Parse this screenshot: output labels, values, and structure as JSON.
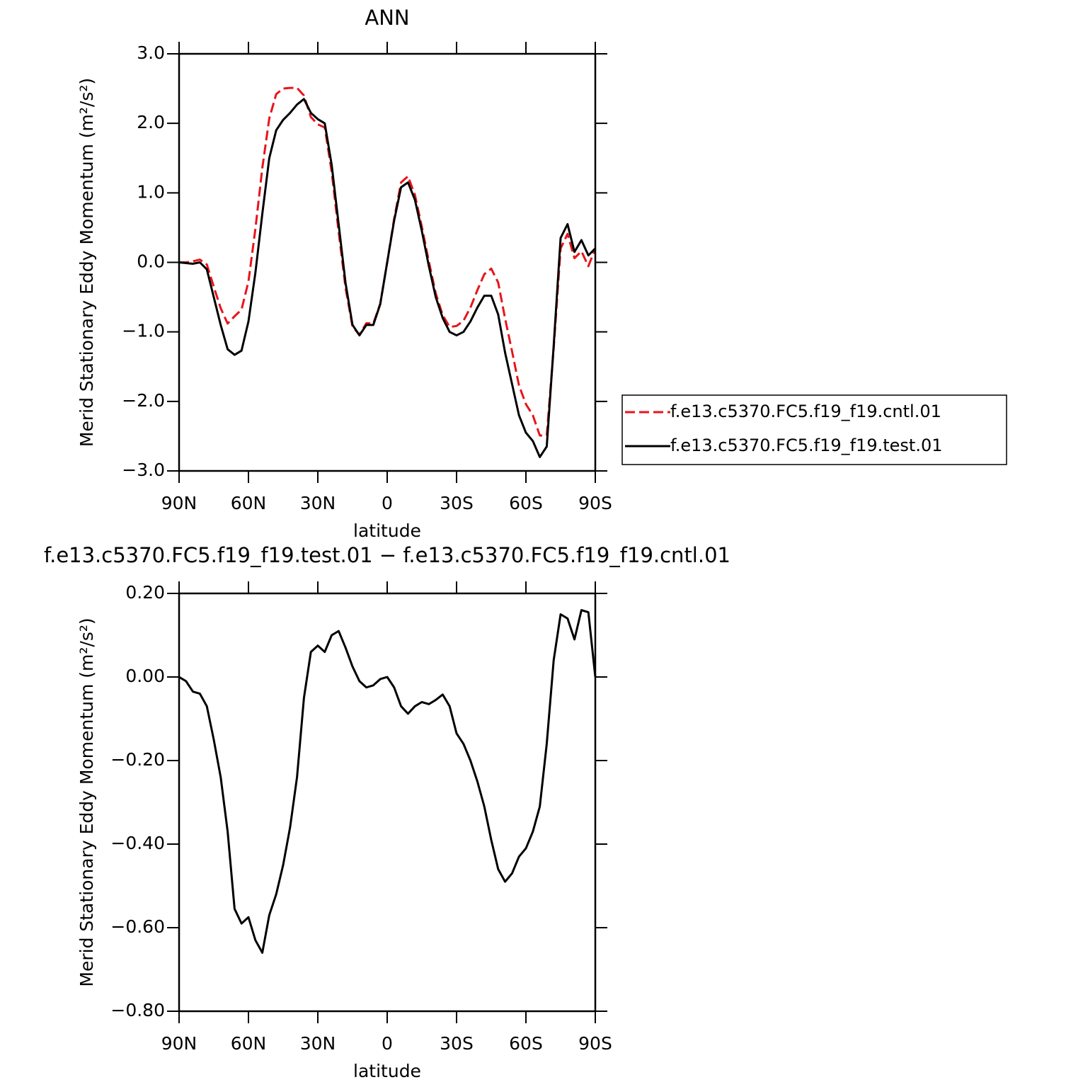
{
  "chart_data": [
    {
      "type": "line",
      "title": "ANN",
      "xlabel": "latitude",
      "ylabel": "Merid Stationary Eddy Momentum (m²/s²)",
      "x": [
        90,
        87,
        84,
        81,
        78,
        75,
        72,
        69,
        66,
        63,
        60,
        57,
        54,
        51,
        48,
        45,
        42,
        39,
        36,
        33,
        30,
        27,
        24,
        21,
        18,
        15,
        12,
        9,
        6,
        3,
        0,
        -3,
        -6,
        -9,
        -12,
        -15,
        -18,
        -21,
        -24,
        -27,
        -30,
        -33,
        -36,
        -39,
        -42,
        -45,
        -48,
        -51,
        -54,
        -57,
        -60,
        -63,
        -66,
        -69,
        -72,
        -75,
        -78,
        -81,
        -84,
        -87,
        -90
      ],
      "series": [
        {
          "name": "f.e13.c5370.FC5.f19_f19.cntl.01",
          "color": "#e8141a",
          "dashed": true,
          "values": [
            0.0,
            0.0,
            0.015,
            0.04,
            -0.03,
            -0.35,
            -0.66,
            -0.88,
            -0.775,
            -0.68,
            -0.275,
            0.48,
            1.36,
            2.07,
            2.42,
            2.5,
            2.51,
            2.51,
            2.4,
            2.09,
            1.985,
            1.94,
            1.3,
            0.44,
            -0.37,
            -0.925,
            -1.04,
            -0.875,
            -0.88,
            -0.595,
            0.0,
            0.625,
            1.15,
            1.238,
            0.97,
            0.51,
            0.015,
            -0.445,
            -0.758,
            -0.93,
            -0.915,
            -0.84,
            -0.65,
            -0.4,
            -0.17,
            -0.09,
            -0.29,
            -0.81,
            -1.28,
            -1.77,
            -2.04,
            -2.2,
            -2.49,
            -2.49,
            -1.24,
            0.2,
            0.41,
            0.06,
            0.16,
            -0.055,
            0.2
          ]
        },
        {
          "name": "f.e13.c5370.FC5.f19_f19.test.01",
          "color": "#000000",
          "dashed": false,
          "values": [
            0.0,
            -0.01,
            -0.02,
            0.0,
            -0.1,
            -0.5,
            -0.9,
            -1.25,
            -1.33,
            -1.27,
            -0.85,
            -0.15,
            0.7,
            1.5,
            1.9,
            2.05,
            2.15,
            2.27,
            2.35,
            2.15,
            2.06,
            2.0,
            1.4,
            0.55,
            -0.3,
            -0.9,
            -1.05,
            -0.9,
            -0.9,
            -0.6,
            0.0,
            0.6,
            1.08,
            1.15,
            0.9,
            0.45,
            -0.05,
            -0.5,
            -0.8,
            -1.0,
            -1.05,
            -1.0,
            -0.85,
            -0.65,
            -0.48,
            -0.48,
            -0.75,
            -1.3,
            -1.75,
            -2.2,
            -2.45,
            -2.57,
            -2.8,
            -2.65,
            -1.2,
            0.35,
            0.55,
            0.15,
            0.32,
            0.1,
            0.2
          ]
        }
      ],
      "xlim": [
        90,
        -90
      ],
      "xticks": [
        {
          "value": 90,
          "label": "90N"
        },
        {
          "value": 60,
          "label": "60N"
        },
        {
          "value": 30,
          "label": "30N"
        },
        0,
        {
          "value": -30,
          "label": "30S"
        },
        {
          "value": -60,
          "label": "60S"
        },
        {
          "value": -90,
          "label": "90S"
        }
      ],
      "ylim": [
        -3,
        3
      ],
      "yticks": [
        {
          "value": -3,
          "label": "−3.0"
        },
        {
          "value": -2,
          "label": "−2.0"
        },
        {
          "value": -1,
          "label": "−1.0"
        },
        {
          "value": 0,
          "label": "0.0"
        },
        {
          "value": 1,
          "label": "1.0"
        },
        {
          "value": 2,
          "label": "2.0"
        },
        {
          "value": 3,
          "label": "3.0"
        }
      ],
      "legend": "outside-right"
    },
    {
      "type": "line",
      "title": "f.e13.c5370.FC5.f19_f19.test.01 − f.e13.c5370.FC5.f19_f19.cntl.01",
      "xlabel": "latitude",
      "ylabel": "Merid Stationary Eddy Momentum (m²/s²)",
      "x": [
        90,
        87,
        84,
        81,
        78,
        75,
        72,
        69,
        66,
        63,
        60,
        57,
        54,
        51,
        48,
        45,
        42,
        39,
        36,
        33,
        30,
        27,
        24,
        21,
        18,
        15,
        12,
        9,
        6,
        3,
        0,
        -3,
        -6,
        -9,
        -12,
        -15,
        -18,
        -21,
        -24,
        -27,
        -30,
        -33,
        -36,
        -39,
        -42,
        -45,
        -48,
        -51,
        -54,
        -57,
        -60,
        -63,
        -66,
        -69,
        -72,
        -75,
        -78,
        -81,
        -84,
        -87,
        -90
      ],
      "series": [
        {
          "color": "#000000",
          "dashed": false,
          "values": [
            0,
            -0.01,
            -0.035,
            -0.04,
            -0.07,
            -0.15,
            -0.24,
            -0.37,
            -0.555,
            -0.59,
            -0.575,
            -0.63,
            -0.66,
            -0.57,
            -0.52,
            -0.45,
            -0.36,
            -0.24,
            -0.05,
            0.06,
            0.075,
            0.06,
            0.1,
            0.11,
            0.07,
            0.025,
            -0.01,
            -0.025,
            -0.02,
            -0.005,
            0.0,
            -0.025,
            -0.07,
            -0.088,
            -0.07,
            -0.06,
            -0.065,
            -0.055,
            -0.042,
            -0.07,
            -0.135,
            -0.16,
            -0.2,
            -0.25,
            -0.31,
            -0.39,
            -0.46,
            -0.49,
            -0.47,
            -0.43,
            -0.41,
            -0.37,
            -0.31,
            -0.16,
            0.04,
            0.15,
            0.14,
            0.09,
            0.16,
            0.155,
            0.0
          ]
        }
      ],
      "xlim": [
        90,
        -90
      ],
      "xticks": [
        {
          "value": 90,
          "label": "90N"
        },
        {
          "value": 60,
          "label": "60N"
        },
        {
          "value": 30,
          "label": "30N"
        },
        0,
        {
          "value": -30,
          "label": "30S"
        },
        {
          "value": -60,
          "label": "60S"
        },
        {
          "value": -90,
          "label": "90S"
        }
      ],
      "ylim": [
        -0.8,
        0.2
      ],
      "yticks": [
        {
          "value": -0.8,
          "label": "−0.80"
        },
        {
          "value": -0.6,
          "label": "−0.60"
        },
        {
          "value": -0.4,
          "label": "−0.40"
        },
        {
          "value": -0.2,
          "label": "−0.20"
        },
        {
          "value": 0,
          "label": "0.00"
        },
        {
          "value": 0.2,
          "label": "0.20"
        }
      ]
    }
  ]
}
